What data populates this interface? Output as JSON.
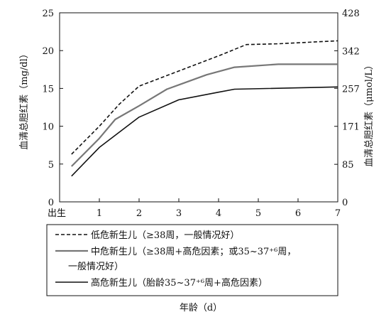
{
  "chart_data": {
    "type": "line",
    "xlabel": "年龄（d）",
    "ylabel_left": "血清总胆红素（mg/dl）",
    "ylabel_right": "血清总胆红素（μmol/L）",
    "x_ticks": [
      "出生",
      "1",
      "2",
      "3",
      "4",
      "5",
      "6",
      "7"
    ],
    "xlim": [
      0,
      7
    ],
    "ylim_left": [
      0,
      25
    ],
    "ylim_right": [
      0,
      428
    ],
    "y_ticks_left": [
      0,
      5,
      10,
      15,
      20,
      25
    ],
    "y_ticks_right": [
      0,
      85,
      171,
      257,
      342,
      428
    ],
    "grid": false,
    "legend_position": "bottom",
    "series": [
      {
        "legend_lines": [
          "低危新生儿（≥38周，一般情况好）"
        ],
        "style": "dashed",
        "color": "#111111",
        "x": [
          0.3,
          1.0,
          1.5,
          2.0,
          3.0,
          4.0,
          4.7,
          5.5,
          7.0
        ],
        "values": [
          6.3,
          10.0,
          12.9,
          15.3,
          17.3,
          19.3,
          20.8,
          20.9,
          21.3
        ]
      },
      {
        "legend_lines": [
          "中危新生儿（≥38周+高危因素；或35~37⁺⁶周，",
          "一般情况好）"
        ],
        "style": "solid",
        "color": "#777777",
        "x": [
          0.3,
          1.0,
          1.4,
          2.0,
          2.7,
          3.7,
          4.4,
          5.5,
          7.0
        ],
        "values": [
          4.7,
          8.4,
          10.9,
          12.7,
          14.9,
          16.8,
          17.8,
          18.2,
          18.2
        ]
      },
      {
        "legend_lines": [
          "高危新生儿（胎龄35~37⁺⁶周+高危因素）"
        ],
        "style": "solid",
        "color": "#111111",
        "x": [
          0.3,
          1.0,
          2.0,
          3.0,
          4.0,
          4.4,
          7.0
        ],
        "values": [
          3.4,
          7.2,
          11.2,
          13.5,
          14.5,
          14.9,
          15.2
        ]
      }
    ]
  }
}
